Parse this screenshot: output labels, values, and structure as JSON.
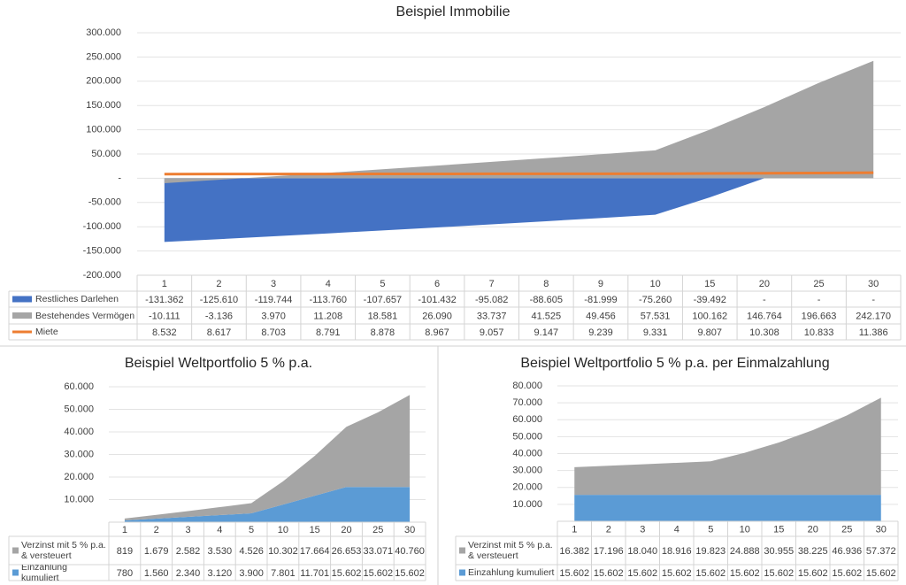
{
  "chart_data": [
    {
      "type": "area",
      "title": "Beispiel Immobilie",
      "stacked": false,
      "grid": true,
      "categories": [
        "1",
        "2",
        "3",
        "4",
        "5",
        "6",
        "7",
        "8",
        "9",
        "10",
        "15",
        "20",
        "25",
        "30"
      ],
      "ylim": [
        -200000,
        300000
      ],
      "yticks": [
        {
          "value": -200000,
          "label": "-200.000"
        },
        {
          "value": -150000,
          "label": "-150.000"
        },
        {
          "value": -100000,
          "label": "-100.000"
        },
        {
          "value": -50000,
          "label": "-50.000"
        },
        {
          "value": 0,
          "label": "-"
        },
        {
          "value": 50000,
          "label": "50.000"
        },
        {
          "value": 100000,
          "label": "100.000"
        },
        {
          "value": 150000,
          "label": "150.000"
        },
        {
          "value": 200000,
          "label": "200.000"
        },
        {
          "value": 250000,
          "label": "250.000"
        },
        {
          "value": 300000,
          "label": "300.000"
        }
      ],
      "series": [
        {
          "name": "Restliches Darlehen",
          "type": "area",
          "color": "#4472c4",
          "values": [
            -131362,
            -125610,
            -119744,
            -113760,
            -107657,
            -101432,
            -95082,
            -88605,
            -81999,
            -75260,
            -39492,
            0,
            0,
            0
          ],
          "value_labels": [
            "-131.362",
            "-125.610",
            "-119.744",
            "-113.760",
            "-107.657",
            "-101.432",
            "-95.082",
            "-88.605",
            "-81.999",
            "-75.260",
            "-39.492",
            "-",
            "-",
            "-"
          ]
        },
        {
          "name": "Bestehendes Vermögen",
          "type": "area",
          "color": "#a5a5a5",
          "values": [
            -10111,
            -3136,
            3970,
            11208,
            18581,
            26090,
            33737,
            41525,
            49456,
            57531,
            100162,
            146764,
            196663,
            242170
          ],
          "value_labels": [
            "-10.111",
            "-3.136",
            "3.970",
            "11.208",
            "18.581",
            "26.090",
            "33.737",
            "41.525",
            "49.456",
            "57.531",
            "100.162",
            "146.764",
            "196.663",
            "242.170"
          ]
        },
        {
          "name": "Miete",
          "type": "line",
          "color": "#ed7d31",
          "values": [
            8532,
            8617,
            8703,
            8791,
            8878,
            8967,
            9057,
            9147,
            9239,
            9331,
            9807,
            10308,
            10833,
            11386
          ],
          "value_labels": [
            "8.532",
            "8.617",
            "8.703",
            "8.791",
            "8.878",
            "8.967",
            "9.057",
            "9.147",
            "9.239",
            "9.331",
            "9.807",
            "10.308",
            "10.833",
            "11.386"
          ]
        }
      ]
    },
    {
      "type": "area",
      "title": "Beispiel Weltportfolio 5 % p.a.",
      "stacked": true,
      "grid": true,
      "categories": [
        "1",
        "2",
        "3",
        "4",
        "5",
        "10",
        "15",
        "20",
        "25",
        "30"
      ],
      "ylim": [
        0,
        60000
      ],
      "yticks": [
        {
          "value": 10000,
          "label": "10.000"
        },
        {
          "value": 20000,
          "label": "20.000"
        },
        {
          "value": 30000,
          "label": "30.000"
        },
        {
          "value": 40000,
          "label": "40.000"
        },
        {
          "value": 50000,
          "label": "50.000"
        },
        {
          "value": 60000,
          "label": "60.000"
        }
      ],
      "series": [
        {
          "name": "Verzinst mit 5 % p.a. & versteuert",
          "type": "area",
          "color": "#a5a5a5",
          "values": [
            819,
            1679,
            2582,
            3530,
            4526,
            10302,
            17664,
            26653,
            33071,
            40760
          ],
          "value_labels": [
            "819",
            "1.679",
            "2.582",
            "3.530",
            "4.526",
            "10.302",
            "17.664",
            "26.653",
            "33.071",
            "40.760"
          ]
        },
        {
          "name": "Einzahlung kumuliert",
          "type": "area",
          "color": "#5b9bd5",
          "values": [
            780,
            1560,
            2340,
            3120,
            3900,
            7801,
            11701,
            15602,
            15602,
            15602
          ],
          "value_labels": [
            "780",
            "1.560",
            "2.340",
            "3.120",
            "3.900",
            "7.801",
            "11.701",
            "15.602",
            "15.602",
            "15.602"
          ]
        }
      ]
    },
    {
      "type": "area",
      "title": "Beispiel Weltportfolio 5 % p.a. per Einmalzahlung",
      "stacked": true,
      "grid": true,
      "categories": [
        "1",
        "2",
        "3",
        "4",
        "5",
        "10",
        "15",
        "20",
        "25",
        "30"
      ],
      "ylim": [
        0,
        80000
      ],
      "yticks": [
        {
          "value": 10000,
          "label": "10.000"
        },
        {
          "value": 20000,
          "label": "20.000"
        },
        {
          "value": 30000,
          "label": "30.000"
        },
        {
          "value": 40000,
          "label": "40.000"
        },
        {
          "value": 50000,
          "label": "50.000"
        },
        {
          "value": 60000,
          "label": "60.000"
        },
        {
          "value": 70000,
          "label": "70.000"
        },
        {
          "value": 80000,
          "label": "80.000"
        }
      ],
      "series": [
        {
          "name": "Verzinst mit 5 % p.a. & versteuert",
          "type": "area",
          "color": "#a5a5a5",
          "values": [
            16382,
            17196,
            18040,
            18916,
            19823,
            24888,
            30955,
            38225,
            46936,
            57372
          ],
          "value_labels": [
            "16.382",
            "17.196",
            "18.040",
            "18.916",
            "19.823",
            "24.888",
            "30.955",
            "38.225",
            "46.936",
            "57.372"
          ]
        },
        {
          "name": "Einzahlung kumuliert",
          "type": "area",
          "color": "#5b9bd5",
          "values": [
            15602,
            15602,
            15602,
            15602,
            15602,
            15602,
            15602,
            15602,
            15602,
            15602
          ],
          "value_labels": [
            "15.602",
            "15.602",
            "15.602",
            "15.602",
            "15.602",
            "15.602",
            "15.602",
            "15.602",
            "15.602",
            "15.602"
          ]
        }
      ]
    }
  ]
}
